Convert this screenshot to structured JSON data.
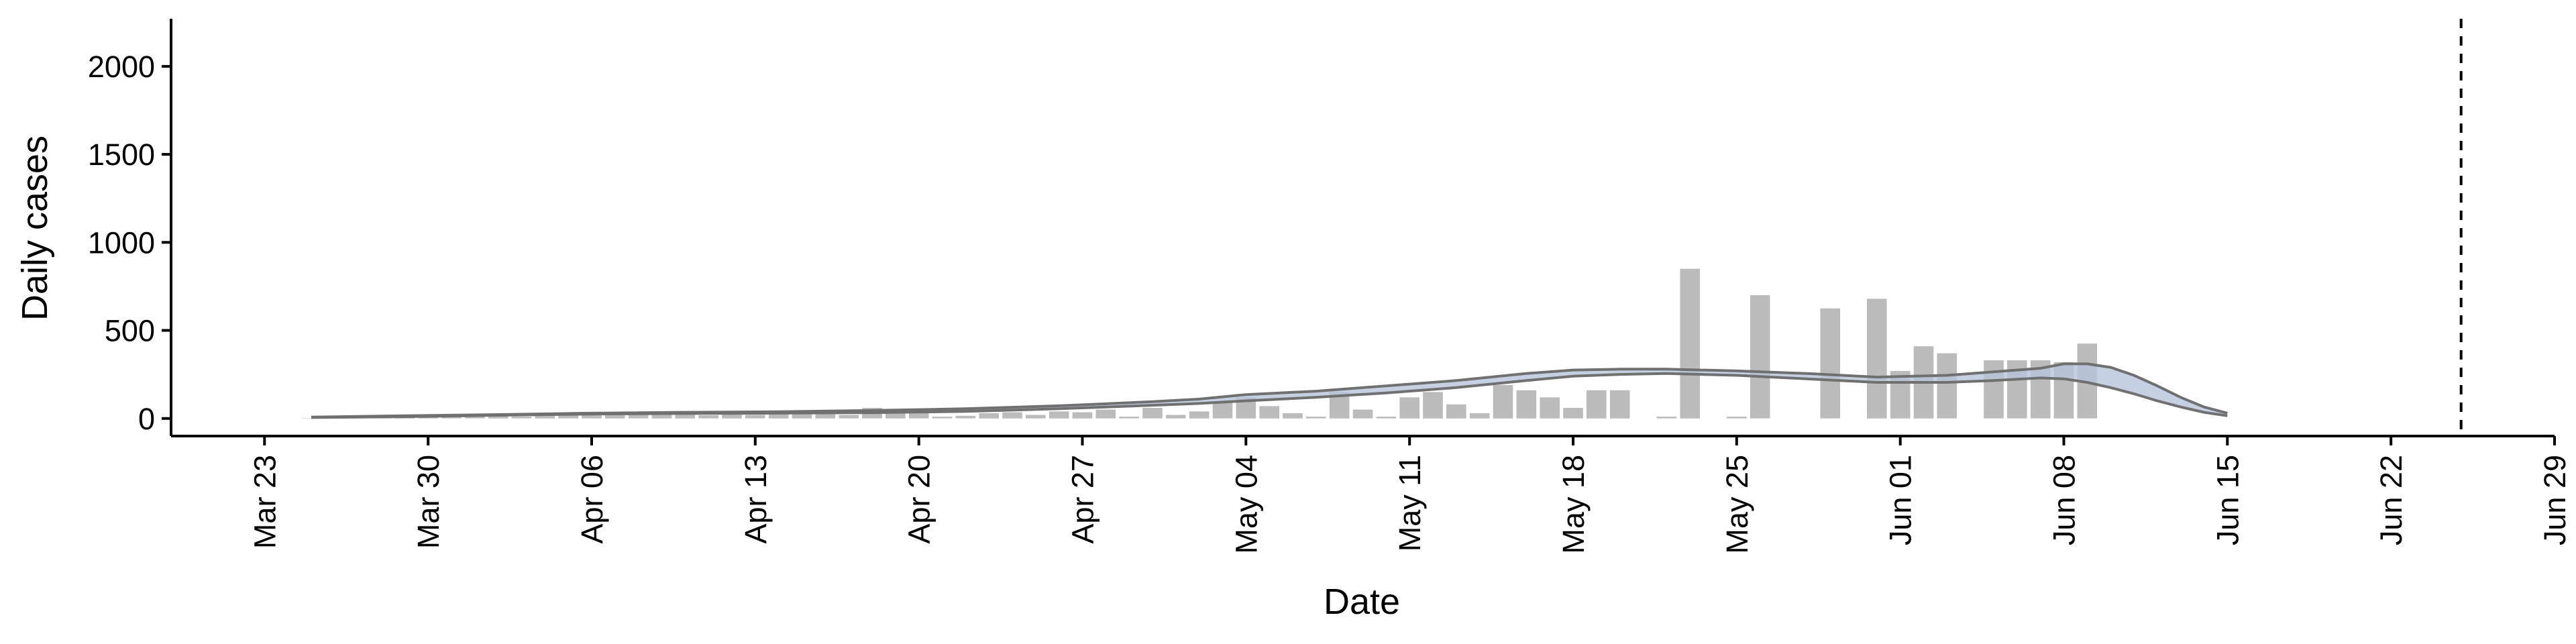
{
  "chart_data": {
    "type": "bar",
    "xlabel": "Date",
    "ylabel": "Daily cases",
    "x_axis": {
      "type": "date",
      "range": [
        "2020-03-19",
        "2020-06-29"
      ],
      "ticks": [
        "2020-03-23",
        "2020-03-30",
        "2020-04-06",
        "2020-04-13",
        "2020-04-20",
        "2020-04-27",
        "2020-05-04",
        "2020-05-11",
        "2020-05-18",
        "2020-05-25",
        "2020-06-01",
        "2020-06-08",
        "2020-06-15",
        "2020-06-22",
        "2020-06-29"
      ],
      "tick_labels": [
        "Mar 23",
        "Mar 30",
        "Apr 06",
        "Apr 13",
        "Apr 20",
        "Apr 27",
        "May 04",
        "May 11",
        "May 18",
        "May 25",
        "Jun 01",
        "Jun 08",
        "Jun 15",
        "Jun 22",
        "Jun 29"
      ]
    },
    "y_axis": {
      "range": [
        -100,
        2270
      ],
      "ticks": [
        0,
        500,
        1000,
        1500,
        2000
      ],
      "tick_labels": [
        "0",
        "500",
        "1000",
        "1500",
        "2000"
      ]
    },
    "grid": false,
    "bars": {
      "color": "#bbbbbb",
      "x": [
        "2020-03-25",
        "2020-03-26",
        "2020-03-27",
        "2020-03-28",
        "2020-03-29",
        "2020-03-30",
        "2020-03-31",
        "2020-04-01",
        "2020-04-02",
        "2020-04-03",
        "2020-04-04",
        "2020-04-05",
        "2020-04-06",
        "2020-04-07",
        "2020-04-08",
        "2020-04-09",
        "2020-04-10",
        "2020-04-11",
        "2020-04-12",
        "2020-04-13",
        "2020-04-14",
        "2020-04-15",
        "2020-04-16",
        "2020-04-17",
        "2020-04-18",
        "2020-04-19",
        "2020-04-20",
        "2020-04-21",
        "2020-04-22",
        "2020-04-23",
        "2020-04-24",
        "2020-04-25",
        "2020-04-26",
        "2020-04-27",
        "2020-04-28",
        "2020-04-29",
        "2020-04-30",
        "2020-05-01",
        "2020-05-02",
        "2020-05-03",
        "2020-05-04",
        "2020-05-05",
        "2020-05-06",
        "2020-05-07",
        "2020-05-08",
        "2020-05-09",
        "2020-05-10",
        "2020-05-11",
        "2020-05-12",
        "2020-05-13",
        "2020-05-14",
        "2020-05-15",
        "2020-05-16",
        "2020-05-17",
        "2020-05-18",
        "2020-05-19",
        "2020-05-20",
        "2020-05-21",
        "2020-05-22",
        "2020-05-23",
        "2020-05-24",
        "2020-05-25",
        "2020-05-26",
        "2020-05-27",
        "2020-05-28",
        "2020-05-29",
        "2020-05-30",
        "2020-05-31",
        "2020-06-01",
        "2020-06-02",
        "2020-06-03",
        "2020-06-04",
        "2020-06-05",
        "2020-06-06",
        "2020-06-07",
        "2020-06-08",
        "2020-06-09",
        "2020-06-10",
        "2020-06-11",
        "2020-06-12",
        "2020-06-13",
        "2020-06-14",
        "2020-06-15",
        "2020-06-16"
      ],
      "values": [
        2,
        3,
        4,
        5,
        6,
        8,
        10,
        12,
        14,
        10,
        14,
        20,
        20,
        24,
        20,
        24,
        22,
        18,
        30,
        20,
        40,
        30,
        35,
        20,
        60,
        40,
        50,
        10,
        15,
        30,
        35,
        20,
        40,
        35,
        50,
        10,
        60,
        20,
        40,
        90,
        120,
        70,
        30,
        10,
        150,
        50,
        10,
        120,
        150,
        80,
        30,
        190,
        160,
        120,
        60,
        160,
        160,
        0,
        10,
        850,
        0,
        10,
        700,
        0,
        0,
        625,
        0,
        680,
        270,
        410,
        370,
        0,
        330,
        330,
        330,
        320,
        425,
        0,
        0,
        0,
        0,
        0,
        0,
        0
      ]
    },
    "series": [
      {
        "band_color": "#b8c4dc",
        "line_color": "#707070",
        "x": [
          "2020-03-25",
          "2020-03-29",
          "2020-04-02",
          "2020-04-06",
          "2020-04-10",
          "2020-04-14",
          "2020-04-18",
          "2020-04-22",
          "2020-04-26",
          "2020-04-30",
          "2020-05-02",
          "2020-05-04",
          "2020-05-07",
          "2020-05-10",
          "2020-05-13",
          "2020-05-16",
          "2020-05-18",
          "2020-05-20",
          "2020-05-22",
          "2020-05-25",
          "2020-05-28",
          "2020-05-31",
          "2020-06-03",
          "2020-06-05",
          "2020-06-07",
          "2020-06-08",
          "2020-06-09",
          "2020-06-10",
          "2020-06-11",
          "2020-06-12",
          "2020-06-13",
          "2020-06-14",
          "2020-06-15"
        ],
        "lower": [
          5,
          10,
          18,
          25,
          28,
          30,
          33,
          40,
          55,
          75,
          85,
          100,
          120,
          145,
          175,
          215,
          240,
          250,
          255,
          245,
          225,
          205,
          205,
          215,
          230,
          225,
          205,
          175,
          140,
          100,
          65,
          35,
          15
        ],
        "upper": [
          8,
          15,
          22,
          30,
          35,
          38,
          45,
          55,
          72,
          95,
          110,
          135,
          155,
          185,
          215,
          255,
          275,
          280,
          280,
          270,
          255,
          235,
          245,
          265,
          285,
          310,
          310,
          290,
          245,
          185,
          120,
          65,
          30
        ]
      }
    ],
    "reference_lines": [
      {
        "orientation": "vertical",
        "x": "2020-06-25",
        "style": "dashed",
        "color": "#000000"
      }
    ]
  }
}
